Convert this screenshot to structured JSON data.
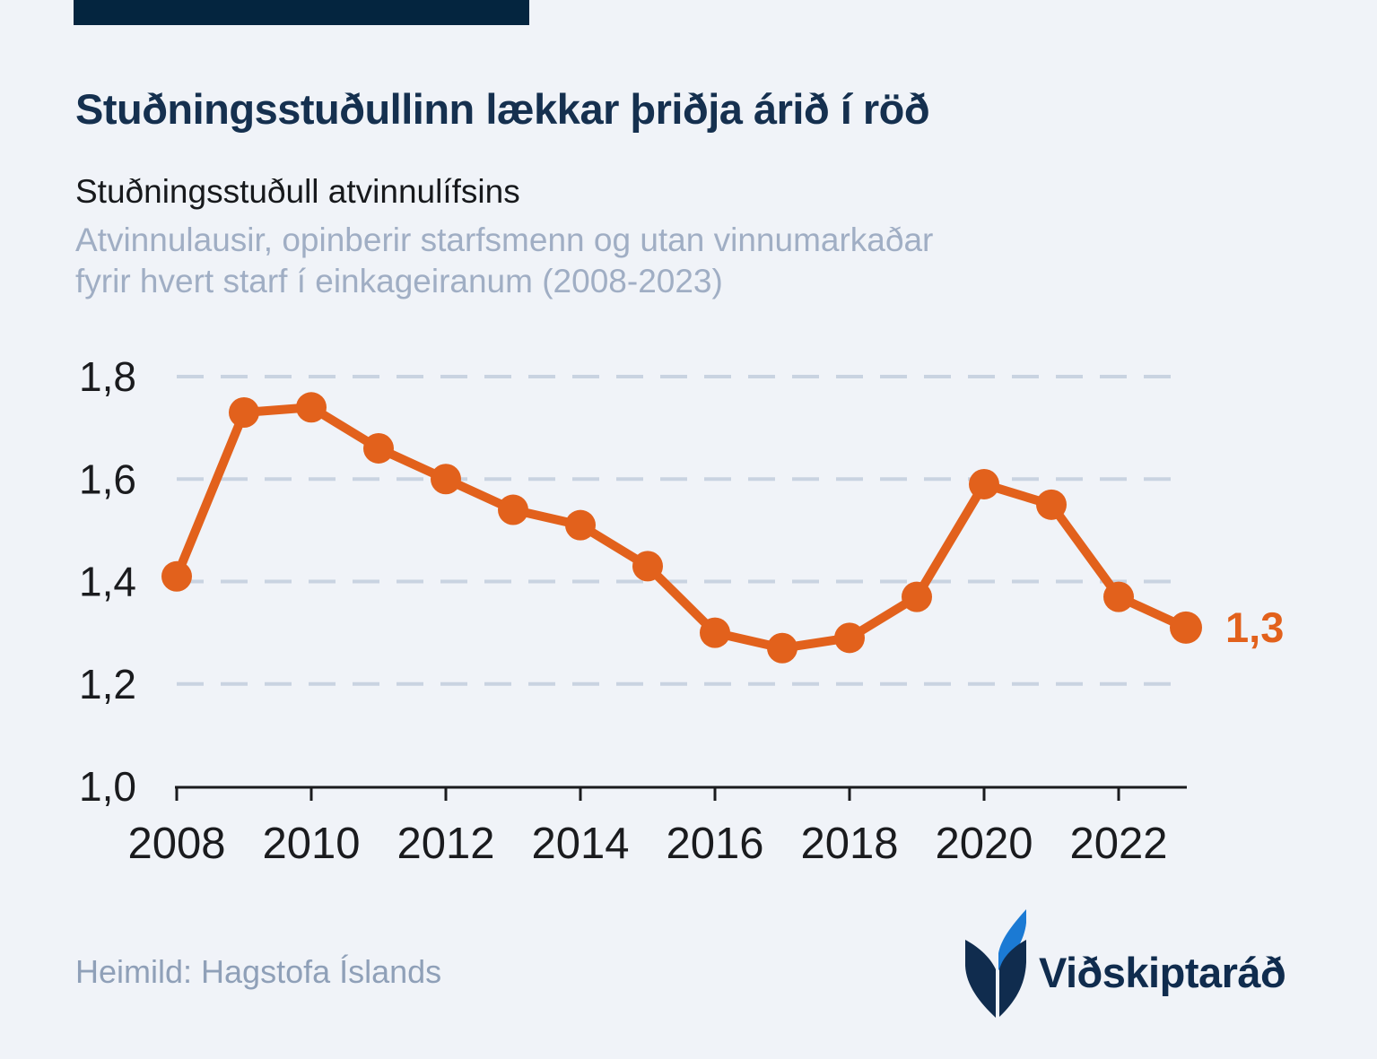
{
  "colors": {
    "background": "#F0F3F8",
    "top_bar": "#04253F",
    "title_navy": "#15304F",
    "subtitle_ink": "#17191C",
    "subtitle_gray": "#A0AEC4",
    "source_gray": "#8FA0B8",
    "gridline": "#C9D3E1",
    "axis": "#1A1B1E",
    "accent_orange": "#E2611C",
    "logo_navy": "#102C4E",
    "logo_blue": "#1B7AD4"
  },
  "header": {
    "title": "Stuðningsstuðullinn lækkar þriðja árið í röð"
  },
  "chart_data": {
    "type": "line",
    "title": "Stuðningsstuðull atvinnulífsins",
    "subtitle_lines": [
      "Atvinnulausir, opinberir starfsmenn og utan vinnumarkaðar",
      "fyrir hvert starf í einkageiranum (2008-2023)"
    ],
    "x": [
      2008,
      2009,
      2010,
      2011,
      2012,
      2013,
      2014,
      2015,
      2016,
      2017,
      2018,
      2019,
      2020,
      2021,
      2022,
      2023
    ],
    "values": [
      1.41,
      1.73,
      1.74,
      1.66,
      1.6,
      1.54,
      1.51,
      1.43,
      1.3,
      1.27,
      1.29,
      1.37,
      1.59,
      1.55,
      1.37,
      1.31
    ],
    "ylim": [
      1.0,
      1.8
    ],
    "yticks": {
      "values": [
        1.0,
        1.2,
        1.4,
        1.6,
        1.8
      ],
      "labels": [
        "1,0",
        "1,2",
        "1,4",
        "1,6",
        "1,8"
      ]
    },
    "xticks": {
      "values": [
        2008,
        2010,
        2012,
        2014,
        2016,
        2018,
        2020,
        2022
      ],
      "labels": [
        "2008",
        "2010",
        "2012",
        "2014",
        "2016",
        "2018",
        "2020",
        "2022"
      ]
    },
    "end_label": "1,3",
    "grid": "dashed-horizontal",
    "legend": "none",
    "line_color": "#E2611C"
  },
  "footer": {
    "source": "Heimild: Hagstofa Íslands",
    "logo_text": "Viðskiptaráð"
  }
}
